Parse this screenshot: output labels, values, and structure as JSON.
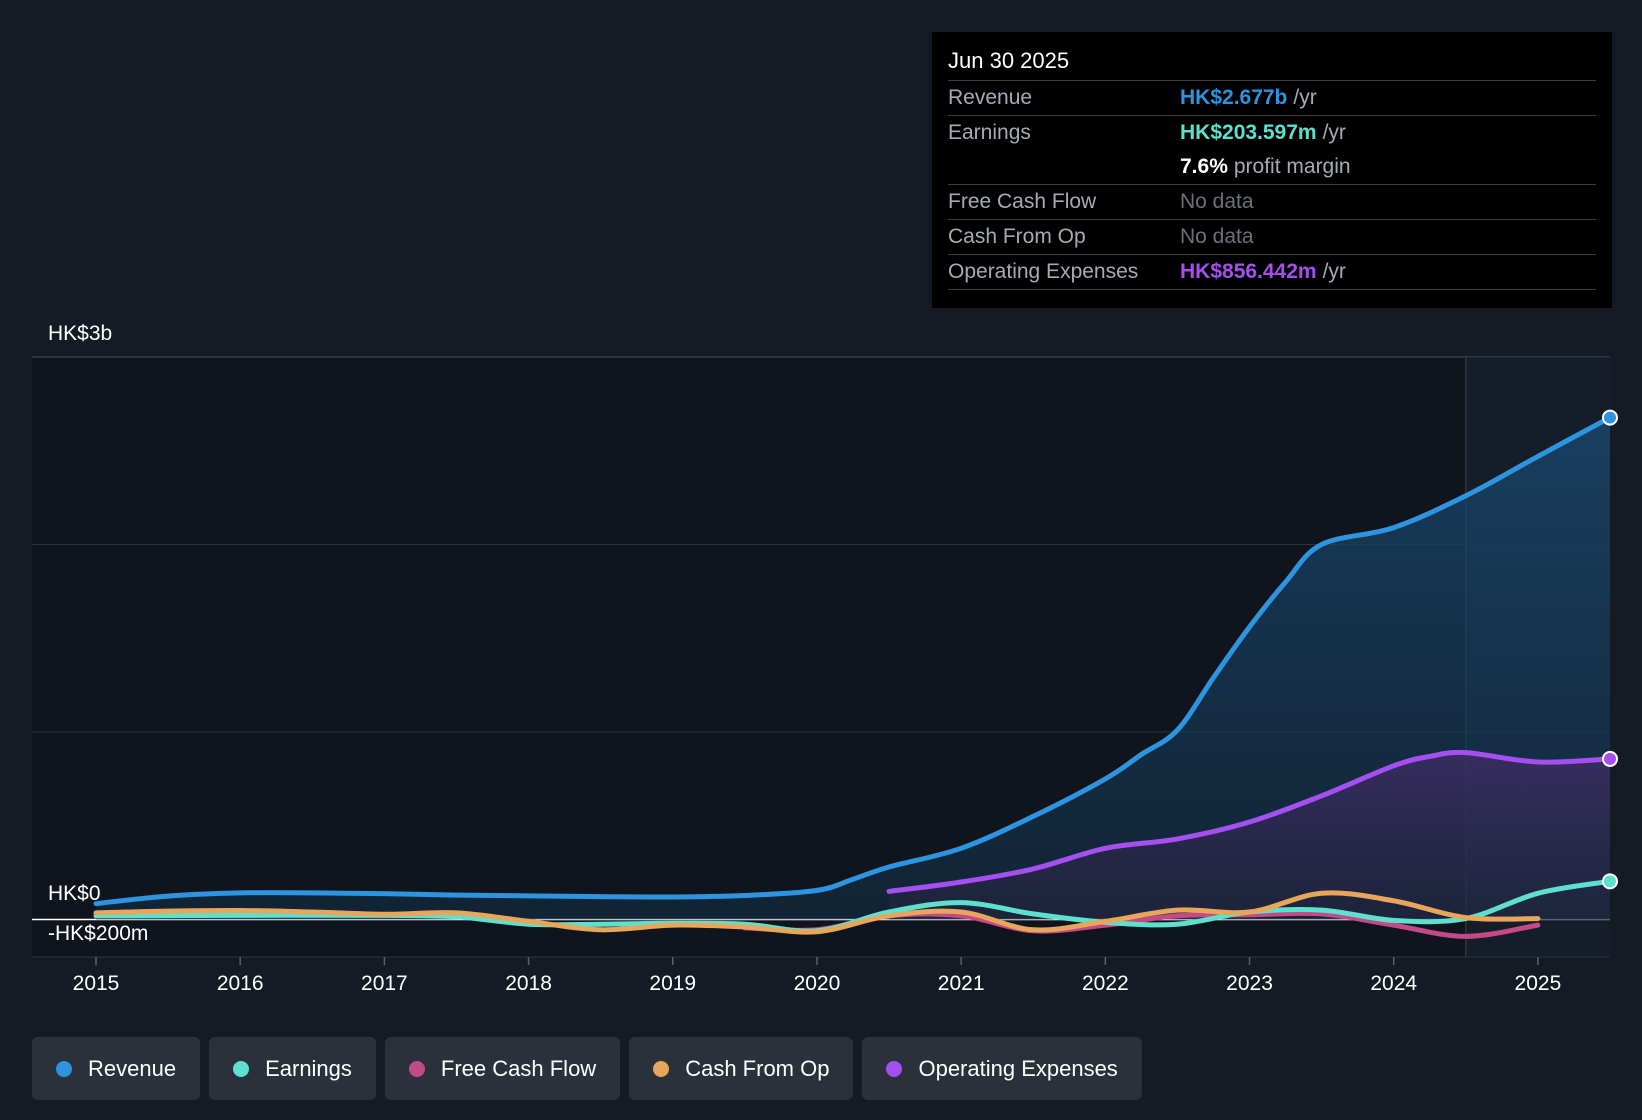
{
  "tooltip": {
    "date": "Jun 30 2025",
    "revenue_label": "Revenue",
    "revenue_value": "HK$2.677b",
    "revenue_unit": "/yr",
    "earnings_label": "Earnings",
    "earnings_value": "HK$203.597m",
    "earnings_unit": "/yr",
    "margin_value": "7.6%",
    "margin_label": "profit margin",
    "fcf_label": "Free Cash Flow",
    "fcf_value": "No data",
    "cfo_label": "Cash From Op",
    "cfo_value": "No data",
    "opex_label": "Operating Expenses",
    "opex_value": "HK$856.442m",
    "opex_unit": "/yr"
  },
  "legend": [
    {
      "label": "Revenue",
      "color": "#2d94e0"
    },
    {
      "label": "Earnings",
      "color": "#5ee0cf"
    },
    {
      "label": "Free Cash Flow",
      "color": "#c24a86"
    },
    {
      "label": "Cash From Op",
      "color": "#e8a65a"
    },
    {
      "label": "Operating Expenses",
      "color": "#a54ff0"
    }
  ],
  "chart_data": {
    "type": "line",
    "y_labels": {
      "top": "HK$3b",
      "zero": "HK$0",
      "bottom": "-HK$200m"
    },
    "ylim": [
      -200,
      3000
    ],
    "xlim": [
      2015,
      2025.5
    ],
    "x_ticks": [
      "2015",
      "2016",
      "2017",
      "2018",
      "2019",
      "2020",
      "2021",
      "2022",
      "2023",
      "2024",
      "2025"
    ],
    "forecast_start": 2024.5,
    "series": [
      {
        "name": "Revenue",
        "color": "#2d94e0",
        "x": [
          2015,
          2015.5,
          2016,
          2016.5,
          2017,
          2017.5,
          2018,
          2018.5,
          2019,
          2019.5,
          2020,
          2020.25,
          2020.5,
          2021,
          2021.5,
          2022,
          2022.25,
          2022.5,
          2022.75,
          2023,
          2023.25,
          2023.5,
          2024,
          2024.5,
          2025,
          2025.5
        ],
        "y": [
          85,
          125,
          142,
          142,
          138,
          130,
          126,
          122,
          120,
          128,
          155,
          215,
          280,
          380,
          550,
          750,
          880,
          1010,
          1290,
          1560,
          1800,
          2000,
          2090,
          2260,
          2470,
          2677
        ]
      },
      {
        "name": "Earnings",
        "color": "#5ee0cf",
        "x": [
          2015,
          2016,
          2017,
          2017.5,
          2018,
          2018.5,
          2019,
          2019.5,
          2020,
          2020.5,
          2021,
          2021.5,
          2022,
          2022.5,
          2023,
          2023.5,
          2024,
          2024.5,
          2025,
          2025.5
        ],
        "y": [
          20,
          22,
          22,
          15,
          -25,
          -25,
          -20,
          -25,
          -60,
          40,
          90,
          30,
          -15,
          -25,
          40,
          50,
          -5,
          5,
          140,
          203.597
        ]
      },
      {
        "name": "Free Cash Flow",
        "color": "#c24a86",
        "x": [
          2019.5,
          2020,
          2020.5,
          2021,
          2021.5,
          2022,
          2022.5,
          2023,
          2023.5,
          2024,
          2024.5,
          2025
        ],
        "y": [
          -45,
          -55,
          20,
          20,
          -60,
          -30,
          20,
          25,
          30,
          -30,
          -90,
          -30
        ]
      },
      {
        "name": "Cash From Op",
        "color": "#e8a65a",
        "x": [
          2015,
          2015.5,
          2016,
          2016.5,
          2017,
          2017.5,
          2018,
          2018.5,
          2019,
          2019.5,
          2020,
          2020.5,
          2021,
          2021.5,
          2022,
          2022.5,
          2023,
          2023.5,
          2024,
          2024.5,
          2025
        ],
        "y": [
          35,
          45,
          48,
          40,
          28,
          35,
          -10,
          -55,
          -30,
          -40,
          -65,
          20,
          40,
          -55,
          -10,
          50,
          40,
          140,
          100,
          10,
          5
        ]
      },
      {
        "name": "Operating Expenses",
        "color": "#a54ff0",
        "x": [
          2020.5,
          2021,
          2021.5,
          2022,
          2022.5,
          2023,
          2023.5,
          2024,
          2024.25,
          2024.5,
          2025,
          2025.5
        ],
        "y": [
          150,
          200,
          270,
          380,
          430,
          520,
          660,
          820,
          870,
          890,
          840,
          856.442
        ]
      }
    ]
  }
}
